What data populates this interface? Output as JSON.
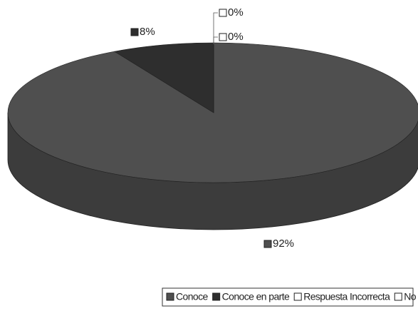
{
  "chart_data": {
    "type": "pie",
    "categories": [
      "Conoce",
      "Conoce en parte",
      "Respuesta Incorrecta",
      "No responde"
    ],
    "values": [
      92,
      8,
      0,
      0
    ],
    "value_labels": [
      "92%",
      "8%",
      "0%",
      "0%"
    ],
    "colors": [
      "#4f4f4f",
      "#2e2e2e",
      "#ffffff",
      "#ffffff"
    ],
    "legend": "bottom"
  }
}
